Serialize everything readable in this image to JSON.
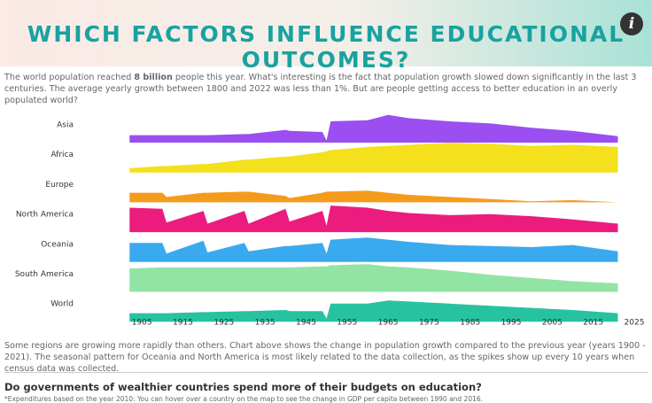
{
  "header": {
    "title": "WHICH FACTORS INFLUENCE EDUCATIONAL OUTCOMES?",
    "info": "i"
  },
  "intro": {
    "before": "The world population reached ",
    "bold": "8 billion",
    "after": " people this year. What's interesting is the fact that population growth slowed down significantly in the last 3 centuries. The average yearly growth between 1800 and 2022 was less than 1%. But are people getting access to better education in an overly populated world?"
  },
  "chart_data": {
    "type": "ridgeline",
    "x": [
      1902,
      1910,
      1911,
      1920,
      1921,
      1930,
      1931,
      1940,
      1941,
      1949,
      1950,
      1951,
      1960,
      1965,
      1970,
      1980,
      1990,
      2000,
      2010,
      2021
    ],
    "xlim": [
      1900,
      2025
    ],
    "xticks": [
      1905,
      1915,
      1925,
      1935,
      1945,
      1955,
      1965,
      1975,
      1985,
      1995,
      2005,
      2015,
      2025
    ],
    "ylim": [
      0,
      3
    ],
    "series": [
      {
        "name": "Asia",
        "color": "#9b4ff0",
        "values": [
          0.7,
          0.7,
          0.7,
          0.7,
          0.7,
          0.8,
          0.8,
          1.2,
          1.1,
          1.0,
          0.2,
          2.0,
          2.1,
          2.6,
          2.3,
          2.0,
          1.8,
          1.4,
          1.1,
          0.6
        ]
      },
      {
        "name": "Africa",
        "color": "#f4e01c",
        "values": [
          0.4,
          0.6,
          0.6,
          0.8,
          0.8,
          1.2,
          1.2,
          1.5,
          1.5,
          1.9,
          2.0,
          2.1,
          2.4,
          2.5,
          2.6,
          2.8,
          2.7,
          2.5,
          2.6,
          2.4
        ]
      },
      {
        "name": "Europe",
        "color": "#f59b1c",
        "values": [
          0.9,
          0.9,
          0.5,
          0.9,
          0.9,
          1.0,
          1.0,
          0.6,
          0.4,
          0.9,
          1.0,
          1.0,
          1.1,
          0.9,
          0.7,
          0.5,
          0.3,
          0.1,
          0.2,
          0.0
        ]
      },
      {
        "name": "North America",
        "color": "#ec1c7f",
        "values": [
          2.3,
          2.2,
          0.9,
          2.0,
          0.8,
          2.0,
          0.8,
          2.2,
          1.0,
          2.0,
          0.6,
          2.5,
          2.3,
          2.0,
          1.8,
          1.6,
          1.7,
          1.5,
          1.2,
          0.8
        ]
      },
      {
        "name": "Oceania",
        "color": "#3aaaf0",
        "values": [
          1.8,
          1.8,
          0.8,
          2.0,
          0.9,
          1.8,
          1.0,
          1.5,
          1.5,
          1.8,
          0.8,
          2.1,
          2.3,
          2.1,
          1.9,
          1.6,
          1.5,
          1.4,
          1.6,
          1.0
        ]
      },
      {
        "name": "South America",
        "color": "#92e4a4",
        "values": [
          2.2,
          2.3,
          2.3,
          2.3,
          2.3,
          2.3,
          2.3,
          2.3,
          2.3,
          2.4,
          2.4,
          2.5,
          2.6,
          2.4,
          2.3,
          2.0,
          1.6,
          1.3,
          1.0,
          0.8
        ]
      },
      {
        "name": "World",
        "color": "#27c3a0",
        "values": [
          0.8,
          0.8,
          0.8,
          0.9,
          0.9,
          1.0,
          1.0,
          1.1,
          1.0,
          1.0,
          0.3,
          1.7,
          1.7,
          2.0,
          1.9,
          1.7,
          1.5,
          1.3,
          1.1,
          0.8
        ]
      }
    ]
  },
  "note": "Some regions are growing more rapidly than others. Chart above shows the change in population growth compared to the previous year (years 1900 - 2021). The seasonal pattern for Oceania and North America is most likely related to the data collection, as the spikes show up every 10 years when census data was collected.",
  "section": {
    "heading": "Do governments of wealthier countries spend more of their budgets on education?",
    "footnote": "*Expenditures based on the year 2010: You can hover over a country on the map to see the change in GDP per capita between 1990 and 2016."
  }
}
